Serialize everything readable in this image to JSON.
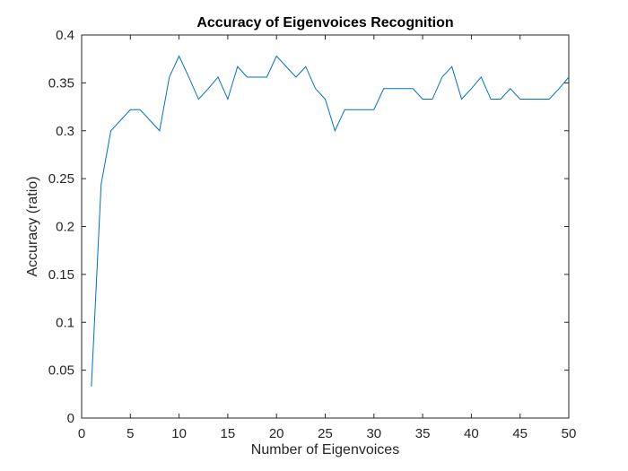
{
  "chart_data": {
    "type": "line",
    "title": "Accuracy of Eigenvoices Recognition",
    "xlabel": "Number of Eigenvoices",
    "ylabel": "Accuracy (ratio)",
    "xlim": [
      0,
      50
    ],
    "ylim": [
      0,
      0.4
    ],
    "xticks": [
      0,
      5,
      10,
      15,
      20,
      25,
      30,
      35,
      40,
      45,
      50
    ],
    "yticks": [
      0,
      0.05,
      0.1,
      0.15,
      0.2,
      0.25,
      0.3,
      0.35,
      0.4
    ],
    "xtick_labels": [
      "0",
      "5",
      "10",
      "15",
      "20",
      "25",
      "30",
      "35",
      "40",
      "45",
      "50"
    ],
    "ytick_labels": [
      "0",
      "0.05",
      "0.1",
      "0.15",
      "0.2",
      "0.25",
      "0.3",
      "0.35",
      "0.4"
    ],
    "grid": false,
    "series": [
      {
        "color": "#0072bd",
        "x": [
          1,
          2,
          3,
          4,
          5,
          6,
          7,
          8,
          9,
          10,
          11,
          12,
          13,
          14,
          15,
          16,
          17,
          18,
          19,
          20,
          21,
          22,
          23,
          24,
          25,
          26,
          27,
          28,
          29,
          30,
          31,
          32,
          33,
          34,
          35,
          36,
          37,
          38,
          39,
          40,
          41,
          42,
          43,
          44,
          45,
          46,
          47,
          48,
          49,
          50
        ],
        "y": [
          0.033,
          0.244,
          0.3,
          0.311,
          0.322,
          0.322,
          0.311,
          0.3,
          0.356,
          0.378,
          0.356,
          0.333,
          0.344,
          0.356,
          0.333,
          0.367,
          0.356,
          0.356,
          0.356,
          0.378,
          0.367,
          0.356,
          0.367,
          0.344,
          0.333,
          0.3,
          0.322,
          0.322,
          0.322,
          0.322,
          0.344,
          0.344,
          0.344,
          0.344,
          0.333,
          0.333,
          0.356,
          0.367,
          0.333,
          0.344,
          0.356,
          0.333,
          0.333,
          0.344,
          0.333,
          0.333,
          0.333,
          0.333,
          0.344,
          0.356
        ]
      }
    ]
  }
}
